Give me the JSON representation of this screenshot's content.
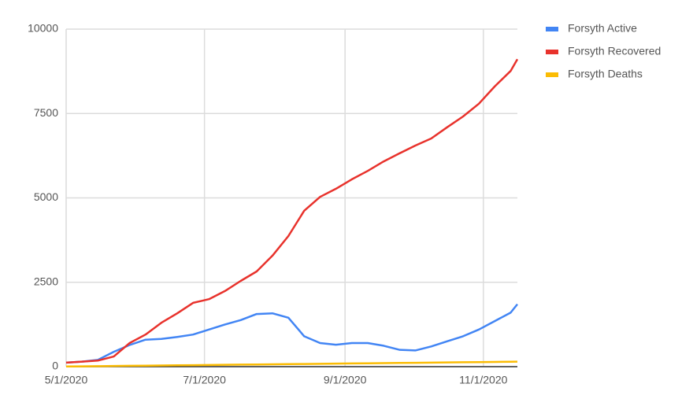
{
  "chart_data": {
    "type": "line",
    "x": [
      "5/1/2020",
      "5/8/2020",
      "5/15/2020",
      "5/22/2020",
      "5/29/2020",
      "6/5/2020",
      "6/12/2020",
      "6/19/2020",
      "6/26/2020",
      "7/3/2020",
      "7/10/2020",
      "7/17/2020",
      "7/24/2020",
      "7/31/2020",
      "8/7/2020",
      "8/14/2020",
      "8/21/2020",
      "8/28/2020",
      "9/4/2020",
      "9/11/2020",
      "9/18/2020",
      "9/25/2020",
      "10/2/2020",
      "10/9/2020",
      "10/16/2020",
      "10/23/2020",
      "10/30/2020",
      "11/6/2020",
      "11/13/2020",
      "11/16/2020"
    ],
    "series": [
      {
        "name": "Forsyth Active",
        "color": "#4285f4",
        "values": [
          120,
          150,
          200,
          440,
          640,
          800,
          820,
          880,
          950,
          1100,
          1250,
          1380,
          1560,
          1580,
          1450,
          900,
          700,
          650,
          700,
          700,
          620,
          500,
          480,
          600,
          750,
          900,
          1100,
          1350,
          1600,
          1850
        ]
      },
      {
        "name": "Forsyth Recovered",
        "color": "#e8322c",
        "values": [
          120,
          150,
          180,
          300,
          700,
          950,
          1300,
          1580,
          1890,
          2000,
          2240,
          2540,
          2820,
          3290,
          3870,
          4620,
          5030,
          5270,
          5550,
          5800,
          6080,
          6320,
          6550,
          6760,
          7090,
          7410,
          7790,
          8300,
          8760,
          9110
        ]
      },
      {
        "name": "Forsyth Deaths",
        "color": "#fbbc04",
        "values": [
          5,
          10,
          15,
          20,
          25,
          30,
          35,
          40,
          45,
          50,
          55,
          60,
          65,
          70,
          75,
          80,
          85,
          90,
          95,
          100,
          105,
          110,
          115,
          120,
          125,
          130,
          135,
          140,
          145,
          150
        ]
      }
    ],
    "xlim": [
      "5/1/2020",
      "11/16/2020"
    ],
    "xticks": [
      "5/1/2020",
      "7/1/2020",
      "9/1/2020",
      "11/1/2020"
    ],
    "ylim": [
      0,
      10000
    ],
    "yticks": [
      0,
      2500,
      5000,
      7500,
      10000
    ],
    "grid": true,
    "legend": "right"
  }
}
